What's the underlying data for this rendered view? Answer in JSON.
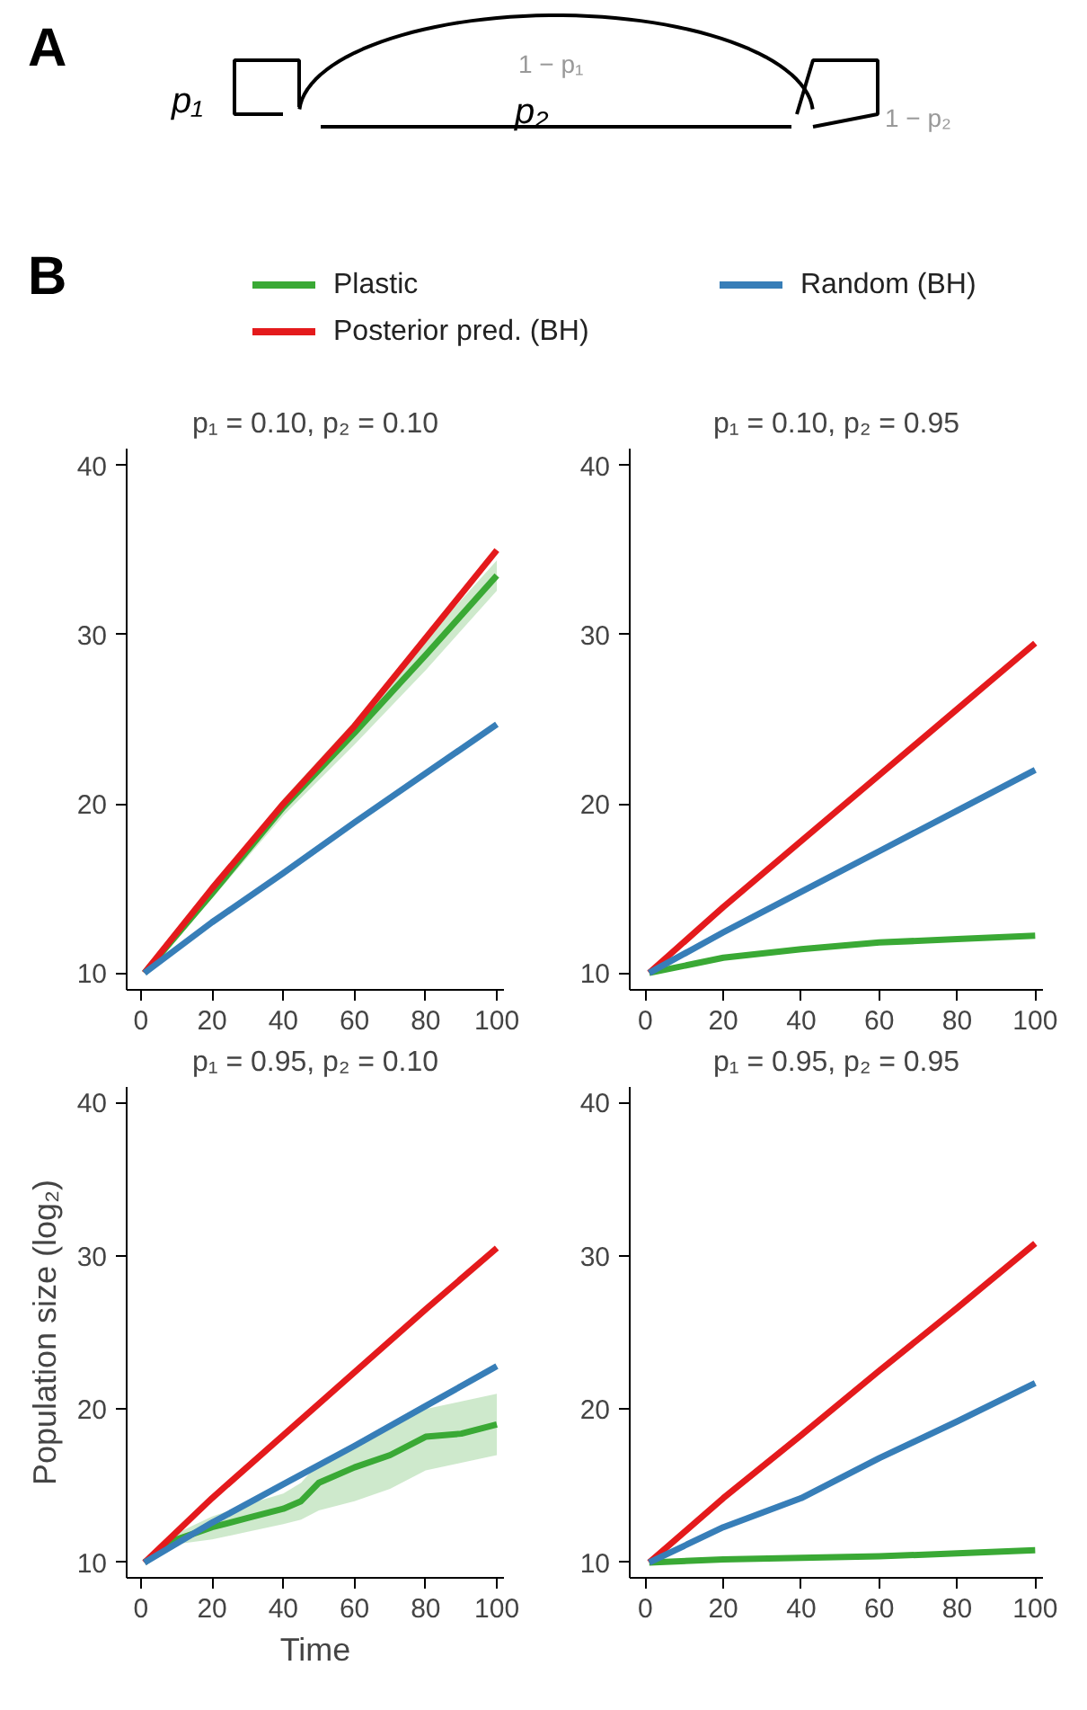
{
  "chart_data": [
    {
      "type": "other",
      "annotations": [
        "A",
        "p₁",
        "p₂",
        "1 − p₁",
        "1 − p₂"
      ]
    },
    {
      "type": "line",
      "title": "p₁ = 0.10, p₂ = 0.10",
      "legend": "top",
      "annotations": [
        "B"
      ],
      "x": [
        1,
        20,
        40,
        60,
        80,
        100
      ],
      "xlim": [
        -4,
        102
      ],
      "ylim": [
        9,
        41
      ],
      "xticks": [
        0,
        20,
        40,
        60,
        80,
        100
      ],
      "yticks": [
        10,
        20,
        30,
        40
      ],
      "grid": false,
      "series": [
        {
          "name": "Plastic",
          "color": "#3aa935",
          "values": [
            10,
            14.7,
            19.8,
            24.2,
            28.8,
            33.5
          ],
          "lower": [
            10,
            14.4,
            19.3,
            23.5,
            27.9,
            32.6
          ],
          "upper": [
            10,
            15,
            20.3,
            24.9,
            29.7,
            34.4
          ]
        },
        {
          "name": "Posterior pred. (BH)",
          "color": "#e41a1c",
          "values": [
            10,
            15,
            20,
            24.6,
            29.8,
            35
          ]
        },
        {
          "name": "Random (BH)",
          "color": "#377eb8",
          "values": [
            10,
            13,
            15.9,
            18.9,
            21.8,
            24.7
          ]
        }
      ]
    },
    {
      "type": "line",
      "title": "p₁ = 0.10, p₂ = 0.95",
      "x": [
        1,
        20,
        40,
        60,
        80,
        100
      ],
      "xlim": [
        -4,
        102
      ],
      "ylim": [
        9,
        41
      ],
      "xticks": [
        0,
        20,
        40,
        60,
        80,
        100
      ],
      "yticks": [
        10,
        20,
        30,
        40
      ],
      "grid": false,
      "series": [
        {
          "color": "#3aa935",
          "values": [
            10,
            10.9,
            11.4,
            11.8,
            12,
            12.2
          ]
        },
        {
          "color": "#e41a1c",
          "values": [
            10,
            13.9,
            17.8,
            21.7,
            25.6,
            29.5
          ]
        },
        {
          "color": "#377eb8",
          "values": [
            10,
            12.4,
            14.8,
            17.2,
            19.6,
            22
          ]
        }
      ]
    },
    {
      "type": "line",
      "title": "p₁ = 0.95, p₂ = 0.10",
      "ylabel": "Population size (log₂)",
      "xlabel": "Time",
      "x": [
        1,
        20,
        40,
        60,
        80,
        100
      ],
      "xlim": [
        -4,
        102
      ],
      "ylim": [
        9,
        41
      ],
      "xticks": [
        0,
        20,
        40,
        60,
        80,
        100
      ],
      "yticks": [
        10,
        20,
        30,
        40
      ],
      "grid": false,
      "series": [
        {
          "color": "#3aa935",
          "x": [
            1,
            10,
            20,
            30,
            40,
            45,
            50,
            60,
            70,
            80,
            90,
            100
          ],
          "values": [
            10,
            11.5,
            12.3,
            12.9,
            13.5,
            14,
            15.2,
            16.2,
            17,
            18.2,
            18.4,
            19
          ],
          "lower": [
            10,
            11.2,
            11.5,
            12,
            12.5,
            12.8,
            13.4,
            14,
            14.8,
            16,
            16.5,
            17
          ],
          "upper": [
            10,
            11.9,
            13,
            13.8,
            14.5,
            15.2,
            16.5,
            17.5,
            18.8,
            20,
            20.5,
            21
          ]
        },
        {
          "color": "#e41a1c",
          "values": [
            10,
            14.2,
            18.3,
            22.4,
            26.5,
            30.5
          ]
        },
        {
          "color": "#377eb8",
          "values": [
            10,
            12.6,
            15.1,
            17.6,
            20.2,
            22.8
          ]
        }
      ]
    },
    {
      "type": "line",
      "title": "p₁ = 0.95, p₂ = 0.95",
      "x": [
        1,
        20,
        40,
        60,
        80,
        100
      ],
      "xlim": [
        -4,
        102
      ],
      "ylim": [
        9,
        41
      ],
      "xticks": [
        0,
        20,
        40,
        60,
        80,
        100
      ],
      "yticks": [
        10,
        20,
        30,
        40
      ],
      "grid": false,
      "series": [
        {
          "color": "#3aa935",
          "values": [
            10,
            10.2,
            10.3,
            10.4,
            10.6,
            10.8
          ]
        },
        {
          "color": "#e41a1c",
          "values": [
            10,
            14.2,
            18.3,
            22.5,
            26.6,
            30.8
          ]
        },
        {
          "color": "#377eb8",
          "values": [
            10,
            12.3,
            14.2,
            16.8,
            19.2,
            21.7
          ]
        }
      ]
    }
  ]
}
